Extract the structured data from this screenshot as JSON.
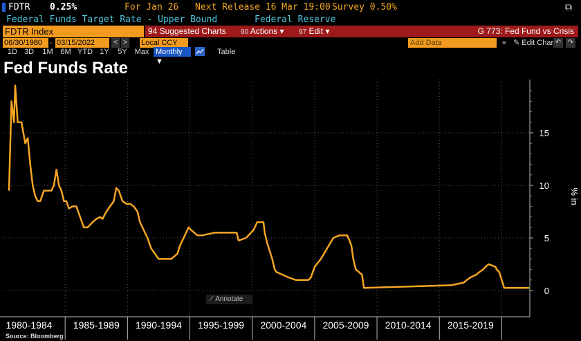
{
  "header": {
    "ticker": "FDTR",
    "value": "0.25%",
    "for_date": "For Jan 26",
    "next_release": "Next Release 16 Mar 19:00",
    "survey": "Survey 0.50%",
    "description": "Federal Funds Target Rate - Upper Bound",
    "source_org": "Federal Reserve"
  },
  "toolbar": {
    "index": "FDTR Index",
    "related": "94 Suggested Charts",
    "actions": "Actions ▾",
    "actions_num": "90",
    "edit": "Edit ▾",
    "edit_num": "97",
    "graph_title": "G 773: Fed Fund vs Crisis",
    "start_date": "06/30/1980",
    "end_date": "03/15/2022",
    "currency": "Local CCY",
    "add_data": "Add Data",
    "edit_chart": "Edit Chart",
    "periods": [
      "1D",
      "3D",
      "1M",
      "6M",
      "YTD",
      "1Y",
      "5Y",
      "Max"
    ],
    "frequency": "Monthly ▼",
    "table": "Table",
    "annotate": "Annotate"
  },
  "chart_data": {
    "type": "line",
    "title": "Fed Funds Rate",
    "ylabel": "% in",
    "ylim": [
      -1,
      20
    ],
    "xlim": [
      1980.0,
      2022.25
    ],
    "yticks": [
      "15",
      "10",
      "5",
      "0"
    ],
    "x_groups": [
      "1980-1984",
      "1985-1989",
      "1990-1994",
      "1995-1999",
      "2000-2004",
      "2005-2009",
      "2010-2014",
      "2015-2019"
    ],
    "grid": true,
    "source": "Source: Bloomberg",
    "series": [
      {
        "color": "#f5a623",
        "x": [
          1980.5,
          1980.7,
          1980.9,
          1981.0,
          1981.2,
          1981.5,
          1981.8,
          1982.0,
          1982.2,
          1982.4,
          1982.6,
          1982.8,
          1983.0,
          1983.3,
          1983.6,
          1983.9,
          1984.1,
          1984.3,
          1984.5,
          1984.7,
          1984.9,
          1985.1,
          1985.3,
          1985.6,
          1985.9,
          1986.2,
          1986.5,
          1986.8,
          1987.2,
          1987.5,
          1987.8,
          1988.0,
          1988.3,
          1988.6,
          1988.9,
          1989.1,
          1989.3,
          1989.6,
          1989.9,
          1990.2,
          1990.5,
          1990.8,
          1991.0,
          1991.3,
          1991.6,
          1991.9,
          1992.2,
          1992.5,
          1993.0,
          1993.5,
          1994.0,
          1994.2,
          1994.4,
          1994.7,
          1994.9,
          1995.1,
          1995.6,
          1996.0,
          1997.0,
          1998.0,
          1998.75,
          1998.9,
          1999.5,
          1999.9,
          2000.1,
          2000.4,
          2000.9,
          2001.0,
          2001.2,
          2001.4,
          2001.6,
          2001.8,
          2001.95,
          2002.9,
          2003.5,
          2004.5,
          2004.7,
          2005.0,
          2005.5,
          2006.0,
          2006.5,
          2007.0,
          2007.6,
          2007.8,
          2007.95,
          2008.1,
          2008.3,
          2008.8,
          2008.95,
          2015.95,
          2016.95,
          2017.2,
          2017.5,
          2017.95,
          2018.2,
          2018.5,
          2018.7,
          2018.95,
          2019.5,
          2019.6,
          2019.8,
          2020.2,
          2022.2
        ],
        "y": [
          9.5,
          18,
          16,
          19.5,
          16,
          16,
          14,
          14.5,
          12,
          10,
          9,
          8.5,
          8.5,
          9.5,
          9.5,
          9.5,
          10,
          11.5,
          10,
          9.5,
          8.5,
          8.5,
          7.8,
          8,
          8,
          7,
          6,
          6,
          6.5,
          6.8,
          7,
          6.8,
          7.5,
          8,
          8.5,
          9.75,
          9.5,
          8.5,
          8.25,
          8.25,
          8,
          7.5,
          6.5,
          5.75,
          5,
          4,
          3.5,
          3,
          3,
          3,
          3.5,
          4.25,
          4.75,
          5.5,
          6,
          5.75,
          5.25,
          5.25,
          5.5,
          5.5,
          5.5,
          4.75,
          5,
          5.5,
          5.75,
          6.5,
          6.5,
          5.5,
          4.5,
          3.75,
          3,
          2,
          1.75,
          1.25,
          1,
          1,
          1.25,
          2.25,
          3,
          4,
          5,
          5.25,
          5.25,
          4.75,
          4.25,
          3,
          2,
          1.5,
          0.25,
          0.5,
          0.75,
          1,
          1.25,
          1.5,
          1.75,
          2,
          2.25,
          2.5,
          2.25,
          2,
          1.75,
          0.25,
          0.25
        ]
      }
    ]
  }
}
